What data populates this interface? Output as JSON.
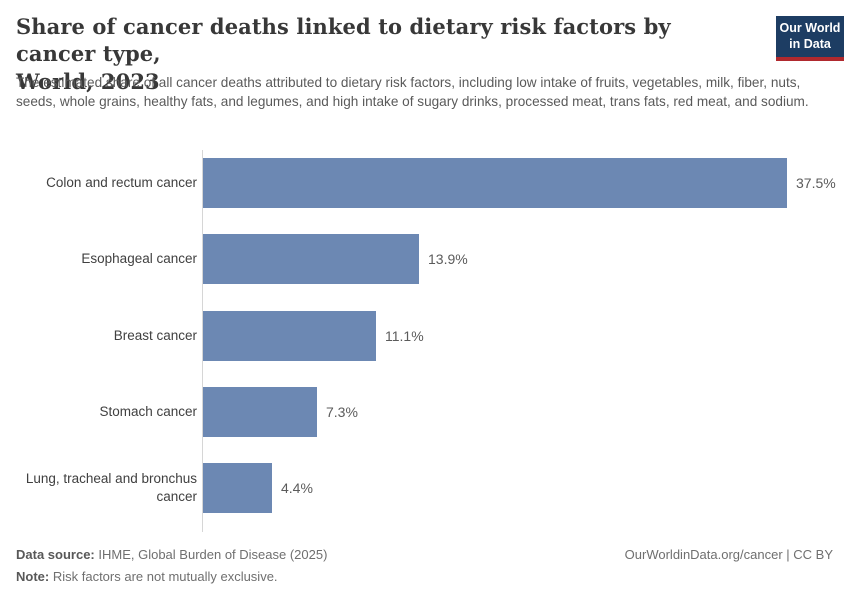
{
  "header": {
    "title_lines": [
      "Share of cancer deaths linked to dietary risk factors by cancer type,",
      "World, 2023"
    ],
    "subtitle": "The estimated share of all cancer deaths attributed to dietary risk factors, including low intake of fruits, vegetables, milk, fiber, nuts, seeds, whole grains, healthy fats, and legumes, and high intake of sugary drinks, processed meat, trans fats, red meat, and sodium.",
    "logo": {
      "line1": "Our World",
      "line2": "in Data",
      "bg_color": "#1d3d63",
      "accent_color": "#b0292e"
    }
  },
  "chart_data": {
    "type": "bar",
    "orientation": "horizontal",
    "title": "Share of cancer deaths linked to dietary risk factors by cancer type, World, 2023",
    "categories": [
      "Colon and rectum cancer",
      "Esophageal cancer",
      "Breast cancer",
      "Stomach cancer",
      "Lung, tracheal and bronchus cancer"
    ],
    "values": [
      37.5,
      13.9,
      11.1,
      7.3,
      4.4
    ],
    "value_labels": [
      "37.5%",
      "13.9%",
      "11.1%",
      "7.3%",
      "4.4%"
    ],
    "unit": "%",
    "xlim": [
      0,
      37.5
    ],
    "bar_color": "#6c88b3",
    "axis_color": "#d6d6d6",
    "grid": false,
    "legend": "none"
  },
  "footer": {
    "source_label": "Data source:",
    "source_text": "IHME, Global Burden of Disease (2025)",
    "note_label": "Note:",
    "note_text": "Risk factors are not mutually exclusive.",
    "credit": "OurWorldinData.org/cancer | CC BY"
  }
}
